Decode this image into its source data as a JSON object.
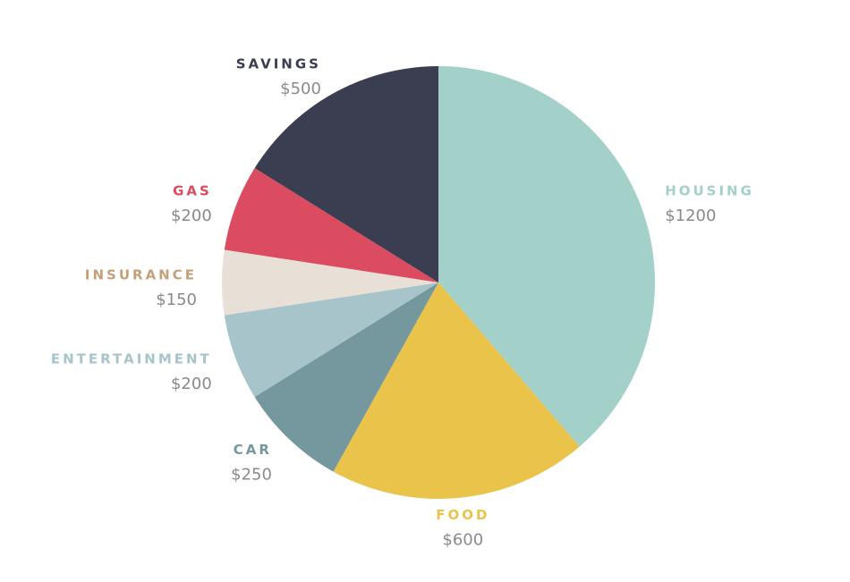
{
  "chart_data": {
    "type": "pie",
    "categories": [
      "HOUSING",
      "FOOD",
      "CAR",
      "ENTERTAINMENT",
      "INSURANCE",
      "GAS",
      "SAVINGS"
    ],
    "values": [
      1200,
      600,
      250,
      200,
      150,
      200,
      500
    ],
    "value_labels": [
      "$1200",
      "$600",
      "$250",
      "$200",
      "$150",
      "$200",
      "$500"
    ],
    "colors": [
      "#a3d0c9",
      "#eac34b",
      "#75989e",
      "#a7c4ca",
      "#e8e0d7",
      "#dc4c61",
      "#3b3d51"
    ],
    "label_colors": [
      "#a3d0c9",
      "#eac34b",
      "#75989e",
      "#a7c4ca",
      "#c4a07a",
      "#dc4c61",
      "#3b3d51"
    ]
  }
}
